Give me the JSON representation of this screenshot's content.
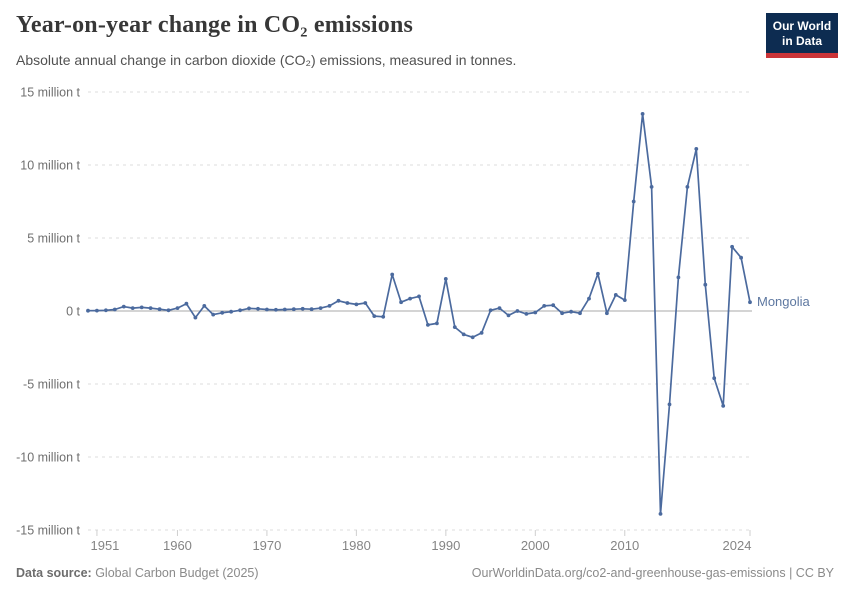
{
  "header": {
    "title": "Year-on-year change in CO₂ emissions",
    "subtitle": "Absolute annual change in carbon dioxide (CO₂) emissions, measured in tonnes.",
    "logo": {
      "line1": "Our World",
      "line2": "in Data"
    }
  },
  "chart_data": {
    "type": "line",
    "title": "Year-on-year change in CO₂ emissions",
    "xlabel": "",
    "ylabel": "",
    "xlim": [
      1950,
      2024
    ],
    "ylim": [
      -15,
      15
    ],
    "grid": "horizontal-dashed",
    "legend_position": "end-of-line-label",
    "x_ticks": [
      1951,
      1960,
      1970,
      1980,
      1990,
      2000,
      2010,
      2024
    ],
    "y_ticks": [
      {
        "value": 15,
        "label": "15 million t"
      },
      {
        "value": 10,
        "label": "10 million t"
      },
      {
        "value": 5,
        "label": "5 million t"
      },
      {
        "value": 0,
        "label": "0 t"
      },
      {
        "value": -5,
        "label": "-5 million t"
      },
      {
        "value": -10,
        "label": "-10 million t"
      },
      {
        "value": -15,
        "label": "-15 million t"
      }
    ],
    "unit": "million tonnes",
    "series": [
      {
        "name": "Mongolia",
        "x": [
          1950,
          1951,
          1952,
          1953,
          1954,
          1955,
          1956,
          1957,
          1958,
          1959,
          1960,
          1961,
          1962,
          1963,
          1964,
          1965,
          1966,
          1967,
          1968,
          1969,
          1970,
          1971,
          1972,
          1973,
          1974,
          1975,
          1976,
          1977,
          1978,
          1979,
          1980,
          1981,
          1982,
          1983,
          1984,
          1985,
          1986,
          1987,
          1988,
          1989,
          1990,
          1991,
          1992,
          1993,
          1994,
          1995,
          1996,
          1997,
          1998,
          1999,
          2000,
          2001,
          2002,
          2003,
          2004,
          2005,
          2006,
          2007,
          2008,
          2009,
          2010,
          2011,
          2012,
          2013,
          2014,
          2015,
          2016,
          2017,
          2018,
          2019,
          2020,
          2021,
          2022,
          2023,
          2024
        ],
        "values": [
          0.02,
          0.03,
          0.05,
          0.1,
          0.3,
          0.2,
          0.25,
          0.2,
          0.12,
          0.05,
          0.2,
          0.5,
          -0.45,
          0.35,
          -0.25,
          -0.12,
          -0.05,
          0.05,
          0.18,
          0.15,
          0.1,
          0.08,
          0.1,
          0.12,
          0.15,
          0.12,
          0.2,
          0.35,
          0.7,
          0.55,
          0.45,
          0.55,
          -0.35,
          -0.4,
          2.5,
          0.6,
          0.85,
          1.0,
          -0.95,
          -0.85,
          2.2,
          -1.1,
          -1.6,
          -1.8,
          -1.5,
          0.05,
          0.2,
          -0.3,
          0.0,
          -0.2,
          -0.1,
          0.35,
          0.4,
          -0.15,
          -0.05,
          -0.15,
          0.85,
          2.55,
          -0.15,
          1.1,
          0.75,
          7.5,
          13.5,
          8.5,
          -13.9,
          -6.4,
          2.3,
          8.5,
          11.1,
          1.8,
          -4.6,
          -6.5,
          4.4,
          3.65,
          0.6
        ]
      }
    ],
    "colors": {
      "line": "#4b6a9e",
      "entity_label": "#5d77a0",
      "gridline": "#dcdcdc",
      "zero_line": "#a9a9a9",
      "axis_text": "#6f6f6f",
      "x_tick_text": "#858585",
      "tick_mark": "#cfcfcf"
    }
  },
  "footer": {
    "source_label": "Data source:",
    "source_value": " Global Carbon Budget (2025)",
    "credit_link": "OurWorldinData.org/co2-and-greenhouse-gas-emissions",
    "credit_suffix": " | CC BY"
  }
}
